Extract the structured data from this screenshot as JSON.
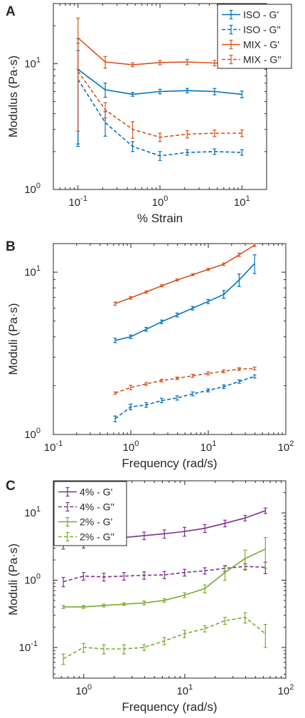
{
  "chart_data": [
    {
      "type": "line",
      "panel_label": "A",
      "xscale": "log",
      "yscale": "log",
      "xlabel": "% Strain",
      "ylabel": "Modulus (Pa·s)",
      "xlim": [
        0.05,
        20
      ],
      "ylim": [
        1,
        30
      ],
      "xticks": [
        {
          "v": 0.1,
          "b": "10",
          "e": "-1"
        },
        {
          "v": 1,
          "b": "10",
          "e": "0"
        },
        {
          "v": 10,
          "b": "10",
          "e": "1"
        }
      ],
      "yticks": [
        {
          "v": 1,
          "b": "10",
          "e": "0"
        },
        {
          "v": 10,
          "b": "10",
          "e": "1"
        }
      ],
      "legend_position": "top-right",
      "x": [
        0.1,
        0.215,
        0.464,
        1.0,
        2.15,
        4.64,
        10.0
      ],
      "series": [
        {
          "name": "ISO - G'",
          "color": "#0072bd",
          "dash": false,
          "values": [
            9.0,
            6.2,
            5.7,
            6.0,
            6.1,
            6.0,
            5.7
          ],
          "err": [
            6.8,
            0.8,
            0.2,
            0.25,
            0.25,
            0.35,
            0.35
          ]
        },
        {
          "name": "ISO - G''",
          "color": "#0072bd",
          "dash": true,
          "values": [
            7.5,
            3.4,
            2.2,
            1.85,
            1.97,
            2.0,
            1.97
          ],
          "err": [
            5.2,
            0.75,
            0.2,
            0.15,
            0.1,
            0.1,
            0.1
          ]
        },
        {
          "name": "MIX - G'",
          "color": "#d95319",
          "dash": false,
          "values": [
            16.0,
            10.3,
            9.8,
            10.2,
            10.3,
            10.1,
            9.9
          ],
          "err": [
            7.0,
            1.1,
            0.35,
            0.4,
            0.5,
            0.5,
            0.5
          ]
        },
        {
          "name": "MIX - G''",
          "color": "#d95319",
          "dash": true,
          "values": [
            8.7,
            4.3,
            3.0,
            2.6,
            2.75,
            2.8,
            2.8
          ],
          "err": [
            5.8,
            0.6,
            0.45,
            0.2,
            0.18,
            0.17,
            0.17
          ]
        }
      ]
    },
    {
      "type": "line",
      "panel_label": "B",
      "xscale": "log",
      "yscale": "log",
      "xlabel": "Frequency (rad/s)",
      "ylabel": "Moduli (Pa·s)",
      "xlim": [
        0.1,
        100
      ],
      "ylim": [
        1,
        15
      ],
      "xticks": [
        {
          "v": 0.1,
          "b": "10",
          "e": "-1"
        },
        {
          "v": 1,
          "b": "10",
          "e": "0"
        },
        {
          "v": 10,
          "b": "10",
          "e": "1"
        },
        {
          "v": 100,
          "b": "10",
          "e": "2"
        }
      ],
      "yticks": [
        {
          "v": 1,
          "b": "10",
          "e": "0"
        },
        {
          "v": 10,
          "b": "10",
          "e": "1"
        }
      ],
      "x": [
        0.628,
        0.995,
        1.58,
        2.5,
        3.96,
        6.28,
        9.95,
        15.8,
        25.0,
        39.6
      ],
      "series": [
        {
          "color": "#d95319",
          "dash": false,
          "values": [
            6.4,
            6.95,
            7.55,
            8.25,
            8.95,
            9.65,
            10.4,
            11.2,
            12.8,
            14.7
          ],
          "err": [
            0.15,
            0.12,
            0.12,
            0.12,
            0.12,
            0.12,
            0.15,
            0.2,
            0.3,
            0.3
          ]
        },
        {
          "color": "#0072bd",
          "dash": false,
          "values": [
            3.8,
            4.0,
            4.45,
            4.95,
            5.45,
            6.0,
            6.6,
            7.3,
            8.95,
            11.3
          ],
          "err": [
            0.12,
            0.1,
            0.12,
            0.12,
            0.15,
            0.15,
            0.2,
            0.4,
            0.8,
            1.5
          ]
        },
        {
          "color": "#d95319",
          "dash": true,
          "values": [
            1.8,
            1.95,
            2.05,
            2.15,
            2.22,
            2.3,
            2.38,
            2.45,
            2.53,
            2.55
          ],
          "err": [
            0.03,
            0.06,
            0.04,
            0.04,
            0.04,
            0.05,
            0.05,
            0.05,
            0.05,
            0.05
          ]
        },
        {
          "color": "#0072bd",
          "dash": true,
          "values": [
            1.25,
            1.48,
            1.52,
            1.62,
            1.68,
            1.78,
            1.87,
            1.97,
            2.12,
            2.28
          ],
          "err": [
            0.05,
            0.06,
            0.05,
            0.05,
            0.05,
            0.05,
            0.04,
            0.05,
            0.05,
            0.05
          ]
        }
      ]
    },
    {
      "type": "line",
      "panel_label": "C",
      "xscale": "log",
      "yscale": "log",
      "xlabel": "Frequency (rad/s)",
      "ylabel": "Moduli (Pa·s)",
      "xlim": [
        0.5,
        100
      ],
      "ylim": [
        0.035,
        30
      ],
      "xticks": [
        {
          "v": 1,
          "b": "10",
          "e": "0"
        },
        {
          "v": 10,
          "b": "10",
          "e": "1"
        },
        {
          "v": 100,
          "b": "10",
          "e": "2"
        }
      ],
      "yticks": [
        {
          "v": 0.1,
          "b": "10",
          "e": "-1"
        },
        {
          "v": 1,
          "b": "10",
          "e": "0"
        },
        {
          "v": 10,
          "b": "10",
          "e": "1"
        }
      ],
      "legend_position": "top-left",
      "x": [
        0.628,
        0.995,
        1.58,
        2.5,
        3.96,
        6.28,
        9.95,
        15.8,
        25.0,
        39.6,
        62.8
      ],
      "series": [
        {
          "name": "4% - G'",
          "color": "#7e2f8e",
          "dash": false,
          "values": [
            3.5,
            3.6,
            3.9,
            4.3,
            4.6,
            4.9,
            5.3,
            5.9,
            7.0,
            8.4,
            10.8
          ],
          "err": [
            0.6,
            0.6,
            0.6,
            0.6,
            0.6,
            0.7,
            0.8,
            0.8,
            0.8,
            0.8,
            1.0
          ]
        },
        {
          "name": "4% - G''",
          "color": "#7e2f8e",
          "dash": true,
          "values": [
            0.95,
            1.15,
            1.12,
            1.15,
            1.18,
            1.2,
            1.3,
            1.38,
            1.5,
            1.6,
            1.55
          ],
          "err": [
            0.15,
            0.15,
            0.15,
            0.15,
            0.15,
            0.15,
            0.15,
            0.15,
            0.15,
            0.15,
            0.3
          ]
        },
        {
          "name": "2% - G'",
          "color": "#77ac30",
          "dash": false,
          "values": [
            0.4,
            0.4,
            0.42,
            0.44,
            0.46,
            0.5,
            0.6,
            0.75,
            1.3,
            2.1,
            2.9
          ],
          "err": [
            0.02,
            0.02,
            0.02,
            0.02,
            0.03,
            0.03,
            0.05,
            0.1,
            0.3,
            0.7,
            1.4
          ]
        },
        {
          "name": "2% - G''",
          "color": "#77ac30",
          "dash": true,
          "values": [
            0.068,
            0.1,
            0.095,
            0.095,
            0.1,
            0.125,
            0.16,
            0.19,
            0.25,
            0.28,
            0.16
          ],
          "err": [
            0.012,
            0.015,
            0.015,
            0.015,
            0.01,
            0.015,
            0.02,
            0.02,
            0.03,
            0.05,
            0.06
          ]
        }
      ]
    }
  ]
}
